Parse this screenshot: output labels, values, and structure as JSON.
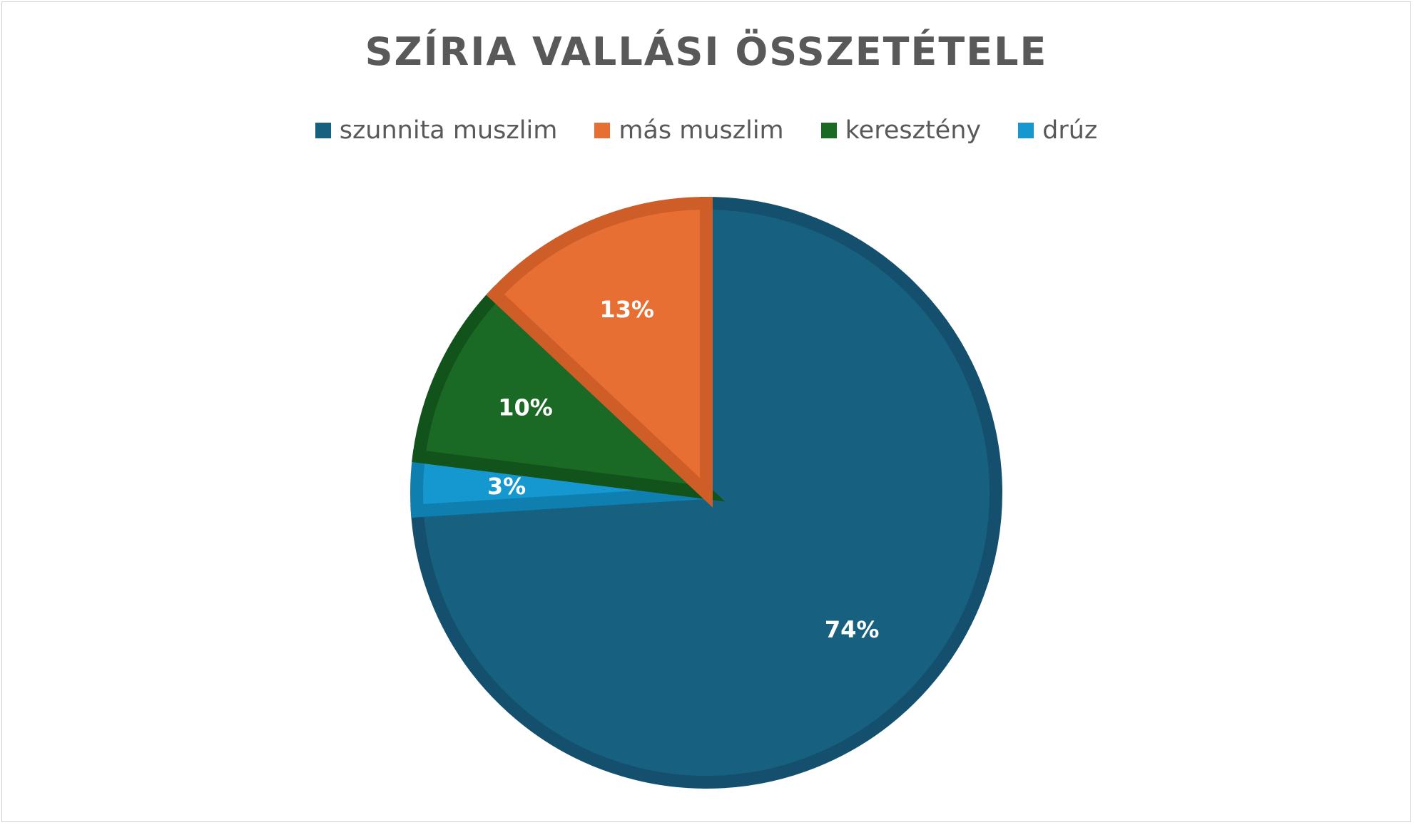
{
  "chart_data": {
    "type": "pie",
    "title": "SZÍRIA VALLÁSI ÖSSZETÉTELE",
    "legend_position": "top",
    "categories": [
      "szunnita muszlim",
      "más muszlim",
      "keresztény",
      "drúz"
    ],
    "values": [
      74,
      13,
      10,
      3
    ],
    "data_labels": [
      "74%",
      "13%",
      "10%",
      "3%"
    ],
    "colors": [
      "#17607f",
      "#e86f33",
      "#1a6a25",
      "#1598cf"
    ],
    "edge_colors": [
      "#14506e",
      "#cf5d28",
      "#12521b",
      "#0f7fb0"
    ],
    "start_angle_deg": 0,
    "direction": "clockwise"
  }
}
